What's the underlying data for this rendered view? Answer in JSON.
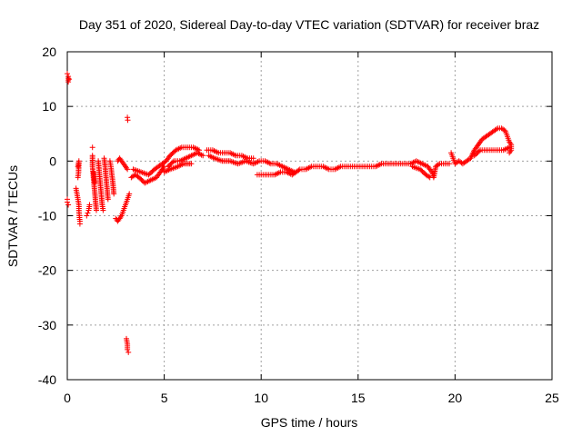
{
  "chart_data": {
    "type": "scatter",
    "title": "Day 351 of 2020, Sidereal Day-to-day VTEC variation (SDTVAR) for receiver braz",
    "xlabel": "GPS time / hours",
    "ylabel": "SDTVAR / TECUs",
    "xlim": [
      0,
      25
    ],
    "ylim": [
      -40,
      20
    ],
    "xticks": [
      "0",
      "5",
      "10",
      "15",
      "20",
      "25"
    ],
    "yticks": [
      "20",
      "10",
      "0",
      "-10",
      "-20",
      "-30",
      "-40"
    ],
    "grid": true,
    "legend": "none",
    "marker": "+",
    "color": "#ff0000",
    "series": [
      {
        "name": "SDTVAR",
        "points": [
          [
            0.0,
            -7
          ],
          [
            0.0,
            -7.5
          ],
          [
            0.05,
            -8
          ],
          [
            0.0,
            16
          ],
          [
            0.05,
            15.5
          ],
          [
            0.05,
            14.5
          ],
          [
            0.1,
            15
          ],
          [
            0.45,
            -5
          ],
          [
            0.5,
            -6
          ],
          [
            0.55,
            -7
          ],
          [
            0.6,
            -8
          ],
          [
            0.6,
            -9
          ],
          [
            0.62,
            -10
          ],
          [
            0.65,
            -11
          ],
          [
            0.65,
            -11.5
          ],
          [
            0.55,
            -1
          ],
          [
            0.6,
            0
          ],
          [
            0.58,
            -2
          ],
          [
            0.55,
            -3
          ],
          [
            1.0,
            -10
          ],
          [
            1.05,
            -9.5
          ],
          [
            1.1,
            -9
          ],
          [
            1.15,
            -8
          ],
          [
            1.3,
            1
          ],
          [
            1.3,
            -1
          ],
          [
            1.35,
            -3
          ],
          [
            1.4,
            -5
          ],
          [
            1.45,
            -7
          ],
          [
            1.5,
            -9
          ],
          [
            1.3,
            2.5
          ],
          [
            1.35,
            -2
          ],
          [
            1.42,
            -4
          ],
          [
            1.6,
            0
          ],
          [
            1.65,
            -2
          ],
          [
            1.7,
            -4
          ],
          [
            1.75,
            -6
          ],
          [
            1.8,
            -8
          ],
          [
            1.85,
            -9
          ],
          [
            1.9,
            0.5
          ],
          [
            1.95,
            -1
          ],
          [
            2.0,
            -3
          ],
          [
            2.05,
            -5
          ],
          [
            2.1,
            -7
          ],
          [
            2.2,
            0
          ],
          [
            2.25,
            -1
          ],
          [
            2.3,
            -2.5
          ],
          [
            2.35,
            -4
          ],
          [
            2.4,
            -6
          ],
          [
            2.5,
            -10.5
          ],
          [
            2.6,
            -11
          ],
          [
            2.7,
            -10.5
          ],
          [
            2.8,
            -10
          ],
          [
            2.9,
            -9
          ],
          [
            3.0,
            -8
          ],
          [
            3.1,
            -7
          ],
          [
            3.2,
            -6
          ],
          [
            2.6,
            0
          ],
          [
            2.7,
            0.5
          ],
          [
            2.8,
            0
          ],
          [
            2.9,
            -0.5
          ],
          [
            3.0,
            -1
          ],
          [
            3.1,
            -1.5
          ],
          [
            3.1,
            8
          ],
          [
            3.12,
            7.5
          ],
          [
            3.05,
            -32.5
          ],
          [
            3.1,
            -33.5
          ],
          [
            3.1,
            -34.5
          ],
          [
            3.15,
            -35
          ],
          [
            3.3,
            -3
          ],
          [
            3.5,
            -2.5
          ],
          [
            3.7,
            -3
          ],
          [
            4.0,
            -4
          ],
          [
            4.3,
            -3.5
          ],
          [
            4.6,
            -3
          ],
          [
            4.8,
            -2
          ],
          [
            5.0,
            -1
          ],
          [
            3.4,
            -1.5
          ],
          [
            3.8,
            -2
          ],
          [
            4.2,
            -2.5
          ],
          [
            4.5,
            -1.5
          ],
          [
            4.9,
            -0.5
          ],
          [
            5.1,
            0
          ],
          [
            5.3,
            1
          ],
          [
            5.6,
            2
          ],
          [
            5.9,
            2.5
          ],
          [
            6.2,
            2.5
          ],
          [
            6.5,
            2.5
          ],
          [
            6.8,
            2
          ],
          [
            5.2,
            -1
          ],
          [
            5.5,
            0
          ],
          [
            5.8,
            0
          ],
          [
            6.1,
            0.5
          ],
          [
            6.4,
            1
          ],
          [
            6.7,
            1.5
          ],
          [
            7.0,
            1
          ],
          [
            5.0,
            -2
          ],
          [
            5.3,
            -1.5
          ],
          [
            5.7,
            -1
          ],
          [
            6.0,
            -0.5
          ],
          [
            6.4,
            -0.5
          ],
          [
            7.2,
            2
          ],
          [
            7.5,
            2
          ],
          [
            7.8,
            1.5
          ],
          [
            8.1,
            1.5
          ],
          [
            8.4,
            1.5
          ],
          [
            8.7,
            1
          ],
          [
            9.0,
            1
          ],
          [
            9.3,
            0.5
          ],
          [
            9.6,
            0.5
          ],
          [
            7.3,
            1
          ],
          [
            7.6,
            0.5
          ],
          [
            8.0,
            0
          ],
          [
            8.4,
            0
          ],
          [
            8.8,
            -0.5
          ],
          [
            9.2,
            0
          ],
          [
            9.6,
            -0.5
          ],
          [
            9.9,
            0
          ],
          [
            10.2,
            0
          ],
          [
            10.5,
            -0.5
          ],
          [
            10.8,
            -0.5
          ],
          [
            11.1,
            -1
          ],
          [
            11.4,
            -1.5
          ],
          [
            11.7,
            -2
          ],
          [
            9.8,
            -2.5
          ],
          [
            10.1,
            -2.5
          ],
          [
            10.4,
            -2.5
          ],
          [
            10.7,
            -2.5
          ],
          [
            11.0,
            -2
          ],
          [
            11.3,
            -2
          ],
          [
            11.6,
            -2.5
          ],
          [
            12.0,
            -1.5
          ],
          [
            12.3,
            -1.5
          ],
          [
            12.6,
            -1
          ],
          [
            12.9,
            -1
          ],
          [
            13.2,
            -1
          ],
          [
            13.5,
            -1.5
          ],
          [
            13.8,
            -1.5
          ],
          [
            14.1,
            -1
          ],
          [
            14.4,
            -1
          ],
          [
            14.7,
            -1
          ],
          [
            15.0,
            -1
          ],
          [
            15.3,
            -1
          ],
          [
            15.6,
            -1
          ],
          [
            15.9,
            -1
          ],
          [
            16.2,
            -0.5
          ],
          [
            16.5,
            -0.5
          ],
          [
            16.8,
            -0.5
          ],
          [
            17.1,
            -0.5
          ],
          [
            17.4,
            -0.5
          ],
          [
            17.7,
            -0.5
          ],
          [
            18.0,
            0
          ],
          [
            18.3,
            -0.5
          ],
          [
            18.6,
            -1
          ],
          [
            18.8,
            -2
          ],
          [
            18.9,
            -3
          ],
          [
            19.0,
            -1
          ],
          [
            19.2,
            -0.5
          ],
          [
            19.4,
            -0.5
          ],
          [
            19.7,
            -0.5
          ],
          [
            17.8,
            -1
          ],
          [
            18.2,
            -1.5
          ],
          [
            18.5,
            -2.5
          ],
          [
            18.7,
            -3
          ],
          [
            19.8,
            1.5
          ],
          [
            19.9,
            0.5
          ],
          [
            20.0,
            -0.5
          ],
          [
            20.2,
            0
          ],
          [
            20.4,
            -0.5
          ],
          [
            20.6,
            0
          ],
          [
            20.8,
            0.5
          ],
          [
            21.0,
            2
          ],
          [
            21.2,
            3
          ],
          [
            21.4,
            4
          ],
          [
            21.6,
            4.5
          ],
          [
            21.8,
            5
          ],
          [
            22.0,
            5.5
          ],
          [
            22.2,
            6
          ],
          [
            22.4,
            6
          ],
          [
            22.6,
            5.5
          ],
          [
            22.7,
            4.5
          ],
          [
            22.8,
            3.5
          ],
          [
            22.9,
            3
          ],
          [
            22.9,
            2
          ],
          [
            22.8,
            1.5
          ],
          [
            21.0,
            1
          ],
          [
            21.3,
            2
          ],
          [
            21.6,
            2
          ],
          [
            21.9,
            2
          ],
          [
            22.2,
            2
          ],
          [
            22.5,
            2
          ],
          [
            22.8,
            2.5
          ]
        ]
      }
    ]
  }
}
